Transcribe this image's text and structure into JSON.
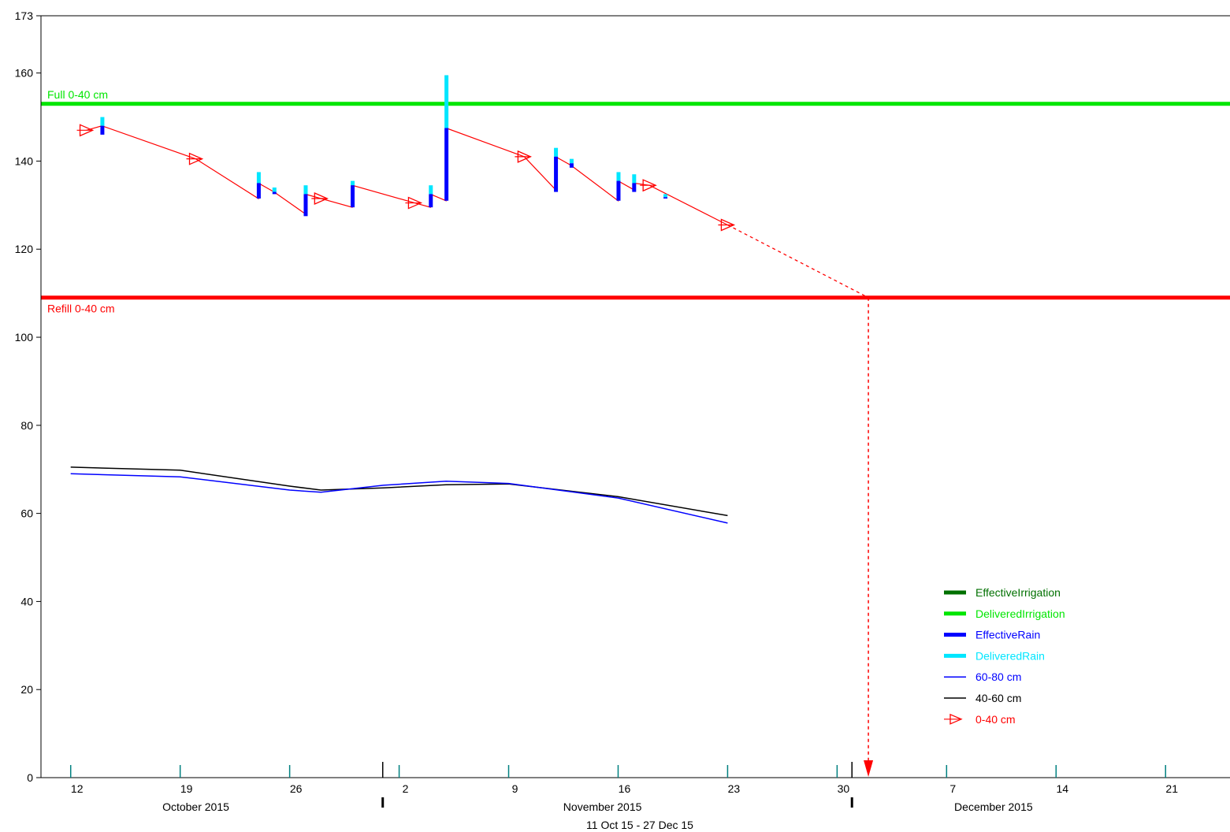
{
  "chart_data": {
    "type": "line",
    "title": "",
    "xlabel": "11 Oct 15 - 27 Dec 15",
    "ylabel": "",
    "ylim": [
      0,
      173
    ],
    "y_ticks": [
      0,
      20,
      40,
      60,
      80,
      100,
      120,
      140,
      160,
      173
    ],
    "x_range_days": [
      "2015-10-11",
      "2015-12-26"
    ],
    "x_ticks": [
      {
        "date": "2015-10-12",
        "label": "12"
      },
      {
        "date": "2015-10-19",
        "label": "19"
      },
      {
        "date": "2015-10-26",
        "label": "26"
      },
      {
        "date": "2015-11-02",
        "label": "2"
      },
      {
        "date": "2015-11-09",
        "label": "9"
      },
      {
        "date": "2015-11-16",
        "label": "16"
      },
      {
        "date": "2015-11-23",
        "label": "23"
      },
      {
        "date": "2015-11-30",
        "label": "30"
      },
      {
        "date": "2015-12-07",
        "label": "7"
      },
      {
        "date": "2015-12-14",
        "label": "14"
      },
      {
        "date": "2015-12-21",
        "label": "21"
      }
    ],
    "month_labels": [
      {
        "label": "October 2015",
        "date": "2015-10-20"
      },
      {
        "label": "November 2015",
        "date": "2015-11-15"
      },
      {
        "label": "December 2015",
        "date": "2015-12-10"
      }
    ],
    "month_boundaries": [
      "2015-11-01",
      "2015-12-01"
    ],
    "reference_lines": [
      {
        "label": "Full 0-40 cm",
        "value": 153,
        "color": "#00e600"
      },
      {
        "label": "Refill 0-40 cm",
        "value": 109,
        "color": "#ff0000"
      }
    ],
    "series": [
      {
        "name": "0-40 cm",
        "color": "#ff0000",
        "marker": "open-triangle-right",
        "points": [
          {
            "x": "2015-10-13",
            "y": 147
          },
          {
            "x": "2015-10-14",
            "y": 148
          },
          {
            "x": "2015-10-20",
            "y": 140.5
          },
          {
            "x": "2015-10-24",
            "y": 131.5
          },
          {
            "x": "2015-10-24",
            "y": 135
          },
          {
            "x": "2015-10-25",
            "y": 133
          },
          {
            "x": "2015-10-27",
            "y": 128
          },
          {
            "x": "2015-10-27",
            "y": 132.5
          },
          {
            "x": "2015-10-28",
            "y": 131.5
          },
          {
            "x": "2015-10-30",
            "y": 129.5
          },
          {
            "x": "2015-10-30",
            "y": 134.5
          },
          {
            "x": "2015-11-03",
            "y": 130.5
          },
          {
            "x": "2015-11-04",
            "y": 129.5
          },
          {
            "x": "2015-11-04",
            "y": 132.5
          },
          {
            "x": "2015-11-05",
            "y": 131
          },
          {
            "x": "2015-11-05",
            "y": 147.5
          },
          {
            "x": "2015-11-10",
            "y": 141
          },
          {
            "x": "2015-11-12",
            "y": 133.5
          },
          {
            "x": "2015-11-12",
            "y": 141
          },
          {
            "x": "2015-11-13",
            "y": 139
          },
          {
            "x": "2015-11-16",
            "y": 131
          },
          {
            "x": "2015-11-16",
            "y": 135.5
          },
          {
            "x": "2015-11-17",
            "y": 133.5
          },
          {
            "x": "2015-11-17",
            "y": 135
          },
          {
            "x": "2015-11-18",
            "y": 134.5
          },
          {
            "x": "2015-11-23",
            "y": 125.5
          }
        ],
        "forecast": {
          "from": {
            "x": "2015-11-23",
            "y": 125.5
          },
          "to": {
            "x": "2015-12-02",
            "y": 109
          }
        }
      },
      {
        "name": "40-60 cm",
        "color": "#000000",
        "points": [
          {
            "x": "2015-10-12",
            "y": 70.5
          },
          {
            "x": "2015-10-19",
            "y": 69.8
          },
          {
            "x": "2015-10-26",
            "y": 66.2
          },
          {
            "x": "2015-10-28",
            "y": 65.3
          },
          {
            "x": "2015-11-01",
            "y": 65.8
          },
          {
            "x": "2015-11-05",
            "y": 66.5
          },
          {
            "x": "2015-11-09",
            "y": 66.7
          },
          {
            "x": "2015-11-16",
            "y": 63.8
          },
          {
            "x": "2015-11-23",
            "y": 59.5
          }
        ]
      },
      {
        "name": "60-80 cm",
        "color": "#0000ff",
        "points": [
          {
            "x": "2015-10-12",
            "y": 69
          },
          {
            "x": "2015-10-19",
            "y": 68.3
          },
          {
            "x": "2015-10-26",
            "y": 65.3
          },
          {
            "x": "2015-10-28",
            "y": 64.8
          },
          {
            "x": "2015-11-01",
            "y": 66.4
          },
          {
            "x": "2015-11-05",
            "y": 67.3
          },
          {
            "x": "2015-11-09",
            "y": 66.8
          },
          {
            "x": "2015-11-16",
            "y": 63.5
          },
          {
            "x": "2015-11-23",
            "y": 57.8
          }
        ]
      }
    ],
    "rain_events": [
      {
        "x": "2015-10-14",
        "effective_bottom": 146,
        "effective_top": 148,
        "delivered_top": 150
      },
      {
        "x": "2015-10-24",
        "effective_bottom": 131.5,
        "effective_top": 135,
        "delivered_top": 137.5
      },
      {
        "x": "2015-10-25",
        "effective_bottom": 132.5,
        "effective_top": 133,
        "delivered_top": 134
      },
      {
        "x": "2015-10-27",
        "effective_bottom": 127.5,
        "effective_top": 132.5,
        "delivered_top": 134.5
      },
      {
        "x": "2015-10-30",
        "effective_bottom": 129.5,
        "effective_top": 134.5,
        "delivered_top": 135.5
      },
      {
        "x": "2015-11-04",
        "effective_bottom": 129.5,
        "effective_top": 132.5,
        "delivered_top": 134.5
      },
      {
        "x": "2015-11-05",
        "effective_bottom": 131,
        "effective_top": 147.5,
        "delivered_top": 159.5
      },
      {
        "x": "2015-11-12",
        "effective_bottom": 133,
        "effective_top": 141,
        "delivered_top": 143
      },
      {
        "x": "2015-11-13",
        "effective_bottom": 138.5,
        "effective_top": 139.5,
        "delivered_top": 140.5
      },
      {
        "x": "2015-11-16",
        "effective_bottom": 131,
        "effective_top": 135.5,
        "delivered_top": 137.5
      },
      {
        "x": "2015-11-17",
        "effective_bottom": 133,
        "effective_top": 135,
        "delivered_top": 137
      },
      {
        "x": "2015-11-19",
        "effective_bottom": 131.5,
        "effective_top": 131.8,
        "delivered_top": 132.5
      }
    ],
    "refill_forecast_date": "2015-12-02",
    "legend": {
      "position": "bottom-right",
      "entries": [
        {
          "label": "EffectiveIrrigation",
          "color": "#007000",
          "style": "thick"
        },
        {
          "label": "DeliveredIrrigation",
          "color": "#00e600",
          "style": "thick"
        },
        {
          "label": "EffectiveRain",
          "color": "#0000ff",
          "style": "thick"
        },
        {
          "label": "DeliveredRain",
          "color": "#00e6ff",
          "style": "thick"
        },
        {
          "label": "60-80 cm",
          "color": "#0000ff",
          "style": "thin"
        },
        {
          "label": "40-60 cm",
          "color": "#000000",
          "style": "thin"
        },
        {
          "label": "0-40 cm",
          "color": "#ff0000",
          "style": "marker"
        }
      ]
    },
    "colors": {
      "axis": "#000000",
      "tick": "#008080",
      "rain_effective": "#0000ff",
      "rain_delivered": "#00e6ff"
    }
  }
}
